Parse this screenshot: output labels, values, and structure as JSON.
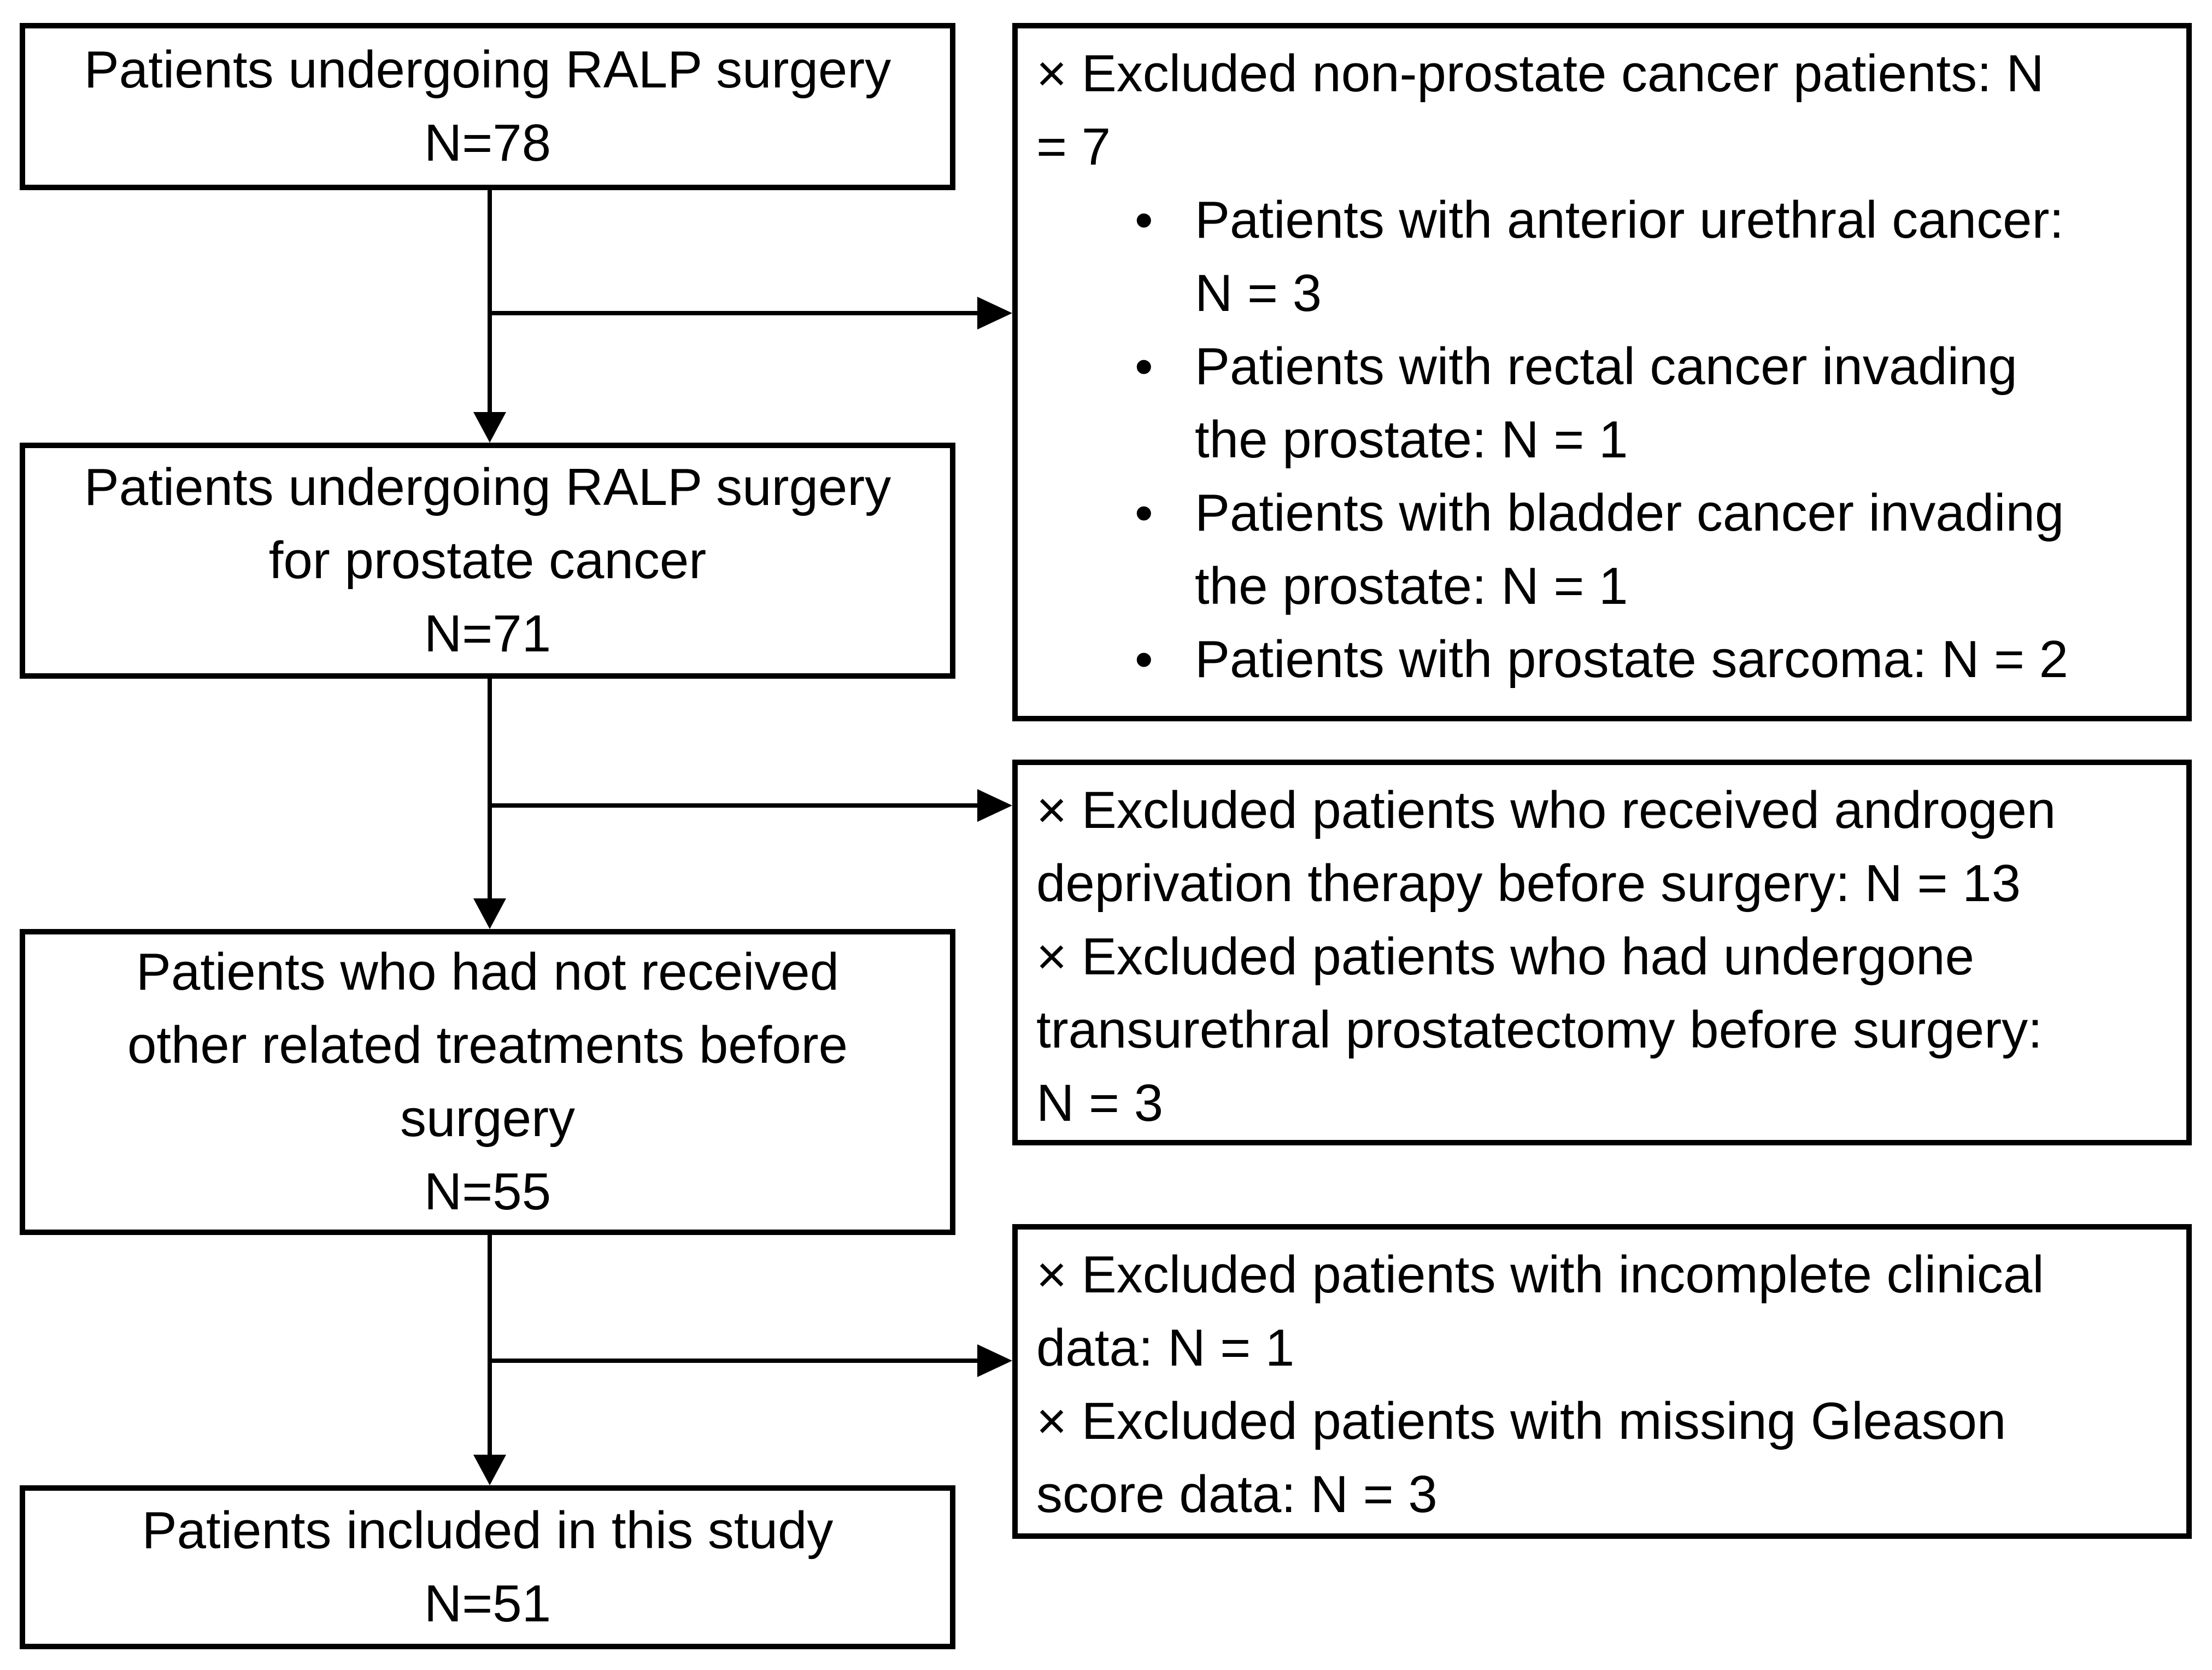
{
  "diagram": {
    "colors": {
      "background": "#ffffff",
      "line": "#000000",
      "text": "#000000"
    },
    "bullet_char": "•",
    "left_boxes": [
      {
        "lines": [
          "Patients undergoing RALP surgery"
        ],
        "n": "N=78"
      },
      {
        "lines": [
          "Patients undergoing RALP surgery",
          "for prostate cancer"
        ],
        "n": "N=71"
      },
      {
        "lines": [
          "Patients who had not received",
          "other related treatments before",
          "surgery"
        ],
        "n": "N=55"
      },
      {
        "lines": [
          "Patients included in this study"
        ],
        "n": "N=51"
      }
    ],
    "exclusion_boxes": [
      {
        "entries": [
          {
            "lines": [
              "× Excluded non-prostate cancer patients: N",
              "= 7"
            ]
          }
        ],
        "bullets": [
          {
            "lines": [
              "Patients with anterior urethral cancer:",
              "N = 3"
            ]
          },
          {
            "lines": [
              "Patients with rectal cancer invading",
              "the prostate: N = 1"
            ]
          },
          {
            "lines": [
              "Patients with bladder cancer invading",
              "the prostate: N = 1"
            ]
          },
          {
            "lines": [
              "Patients with prostate sarcoma: N = 2"
            ]
          }
        ]
      },
      {
        "entries": [
          {
            "lines": [
              "× Excluded patients who received androgen",
              "deprivation therapy before surgery: N = 13"
            ]
          },
          {
            "lines": [
              "× Excluded patients who had undergone",
              "transurethral prostatectomy before surgery:",
              "N = 3"
            ]
          }
        ],
        "bullets": []
      },
      {
        "entries": [
          {
            "lines": [
              "× Excluded patients with incomplete clinical",
              "data: N = 1"
            ]
          },
          {
            "lines": [
              "× Excluded patients with missing Gleason",
              "score data: N = 3"
            ]
          }
        ],
        "bullets": []
      }
    ]
  }
}
